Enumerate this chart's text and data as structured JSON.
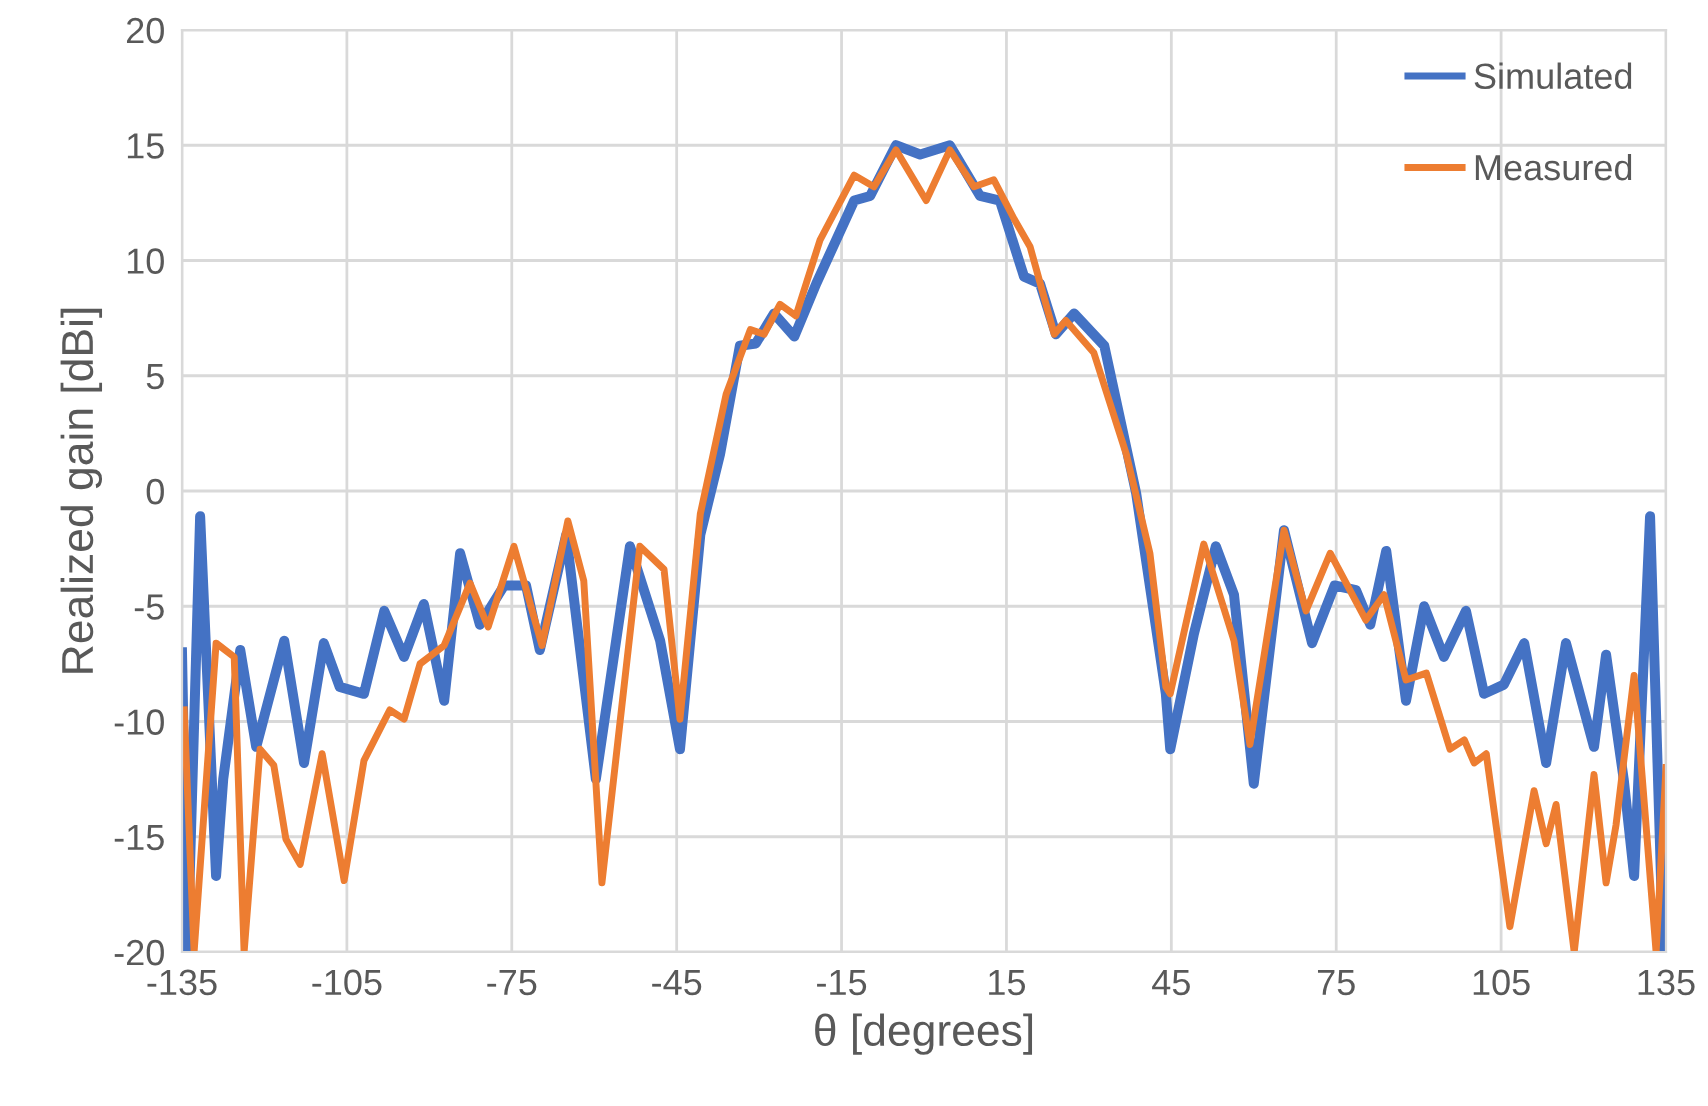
{
  "chart_data": {
    "type": "line",
    "xlabel": "θ [degrees]",
    "ylabel": "Realized gain [dBi]",
    "xlim": [
      -135,
      135
    ],
    "xticks": [
      -135,
      -105,
      -75,
      -45,
      -15,
      15,
      45,
      75,
      105,
      135
    ],
    "ylim": [
      -20,
      20
    ],
    "yticks": [
      -20,
      -15,
      -10,
      -5,
      0,
      5,
      10,
      15,
      20
    ],
    "grid": true,
    "legend": "top right",
    "marker": "none",
    "line_style": "solid",
    "series": [
      {
        "name": "Simulated",
        "color": "#4472c4",
        "x": [
          -135,
          -134,
          -131.7,
          -128.8,
          -127.5,
          -124.4,
          -121.5,
          -116.4,
          -112.8,
          -109.2,
          -106.3,
          -101.9,
          -98.2,
          -94.6,
          -91,
          -87.3,
          -84.4,
          -80.8,
          -76.4,
          -72.4,
          -69.9,
          -65.1,
          -59.7,
          -53.5,
          -48,
          -44.4,
          -40.7,
          -37.1,
          -33.5,
          -30.6,
          -27.3,
          -23.6,
          -19.6,
          -12.7,
          -9.8,
          -5.1,
          -0.7,
          4.7,
          10.2,
          13.8,
          18.2,
          21.1,
          24,
          27.3,
          32.8,
          38.6,
          44,
          44.8,
          49.1,
          53.1,
          56.4,
          60,
          65.5,
          70.6,
          74.7,
          78.6,
          81.2,
          84.1,
          87.7,
          91,
          94.6,
          98.6,
          101.9,
          105.5,
          109.2,
          113.2,
          116.8,
          121.9,
          124.1,
          127.3,
          129.2,
          132.1,
          134.5
        ],
        "values": [
          -7,
          -20,
          -1.1,
          -16.7,
          -12.5,
          -6.9,
          -11.1,
          -6.5,
          -11.8,
          -6.6,
          -8.5,
          -8.8,
          -5.2,
          -7.2,
          -4.9,
          -9.1,
          -2.7,
          -5.8,
          -4.1,
          -4.1,
          -6.9,
          -1.9,
          -12.5,
          -2.4,
          -6.5,
          -11.2,
          -1.9,
          1.6,
          6.3,
          6.4,
          7.7,
          6.7,
          9,
          12.6,
          12.8,
          15,
          14.6,
          15,
          12.8,
          12.6,
          9.3,
          9,
          6.8,
          7.7,
          6.3,
          -0.1,
          -8.8,
          -11.2,
          -6.2,
          -2.4,
          -4.5,
          -12.7,
          -1.7,
          -6.6,
          -4.1,
          -4.3,
          -5.8,
          -2.6,
          -9.1,
          -5,
          -7.2,
          -5.2,
          -8.8,
          -8.4,
          -6.6,
          -11.8,
          -6.6,
          -11.1,
          -7.1,
          -12.5,
          -16.7,
          -1.1,
          -20
        ]
      },
      {
        "name": "Measured",
        "color": "#ed7d31",
        "x": [
          -134.6,
          -132.8,
          -128.8,
          -125.5,
          -123.7,
          -120.8,
          -118.3,
          -116.1,
          -113.5,
          -109.5,
          -105.5,
          -101.9,
          -97.2,
          -94.6,
          -91.7,
          -87.3,
          -82.6,
          -79.3,
          -74.6,
          -69.5,
          -64.8,
          -61.9,
          -58.6,
          -51.7,
          -47.3,
          -44.4,
          -40.7,
          -36,
          -31.6,
          -29.1,
          -26.2,
          -23.3,
          -18.9,
          -12.7,
          -9.1,
          -5.1,
          0.4,
          4.7,
          9.1,
          12.7,
          16.4,
          19.3,
          23.7,
          25.8,
          30.9,
          36.8,
          41.1,
          44,
          44.8,
          50.9,
          56.4,
          59.3,
          65.5,
          69.5,
          73.9,
          80.4,
          83.7,
          87.7,
          91.4,
          95.7,
          98.3,
          100.1,
          102.3,
          106.6,
          111,
          113.2,
          115,
          118.3,
          121.9,
          124.1,
          125.9,
          129.2,
          133.2,
          135
        ],
        "values": [
          -9.5,
          -20,
          -6.6,
          -7.2,
          -20,
          -11.2,
          -11.9,
          -15.1,
          -16.2,
          -11.4,
          -16.9,
          -11.7,
          -9.5,
          -9.9,
          -7.5,
          -6.7,
          -4,
          -5.9,
          -2.4,
          -6.7,
          -1.3,
          -3.9,
          -17,
          -2.4,
          -3.4,
          -9.9,
          -1,
          4.2,
          7,
          6.8,
          8.1,
          7.6,
          10.9,
          13.7,
          13.2,
          14.8,
          12.6,
          14.8,
          13.2,
          13.5,
          11.8,
          10.6,
          6.8,
          7.4,
          6,
          1.6,
          -2.7,
          -8.5,
          -8.8,
          -2.3,
          -6.5,
          -11,
          -1.7,
          -5.2,
          -2.7,
          -5.6,
          -4.5,
          -8.2,
          -7.9,
          -11.2,
          -10.8,
          -11.8,
          -11.4,
          -18.9,
          -13,
          -15.3,
          -13.6,
          -20,
          -12.3,
          -17,
          -14.5,
          -8,
          -20,
          -12
        ]
      }
    ]
  }
}
